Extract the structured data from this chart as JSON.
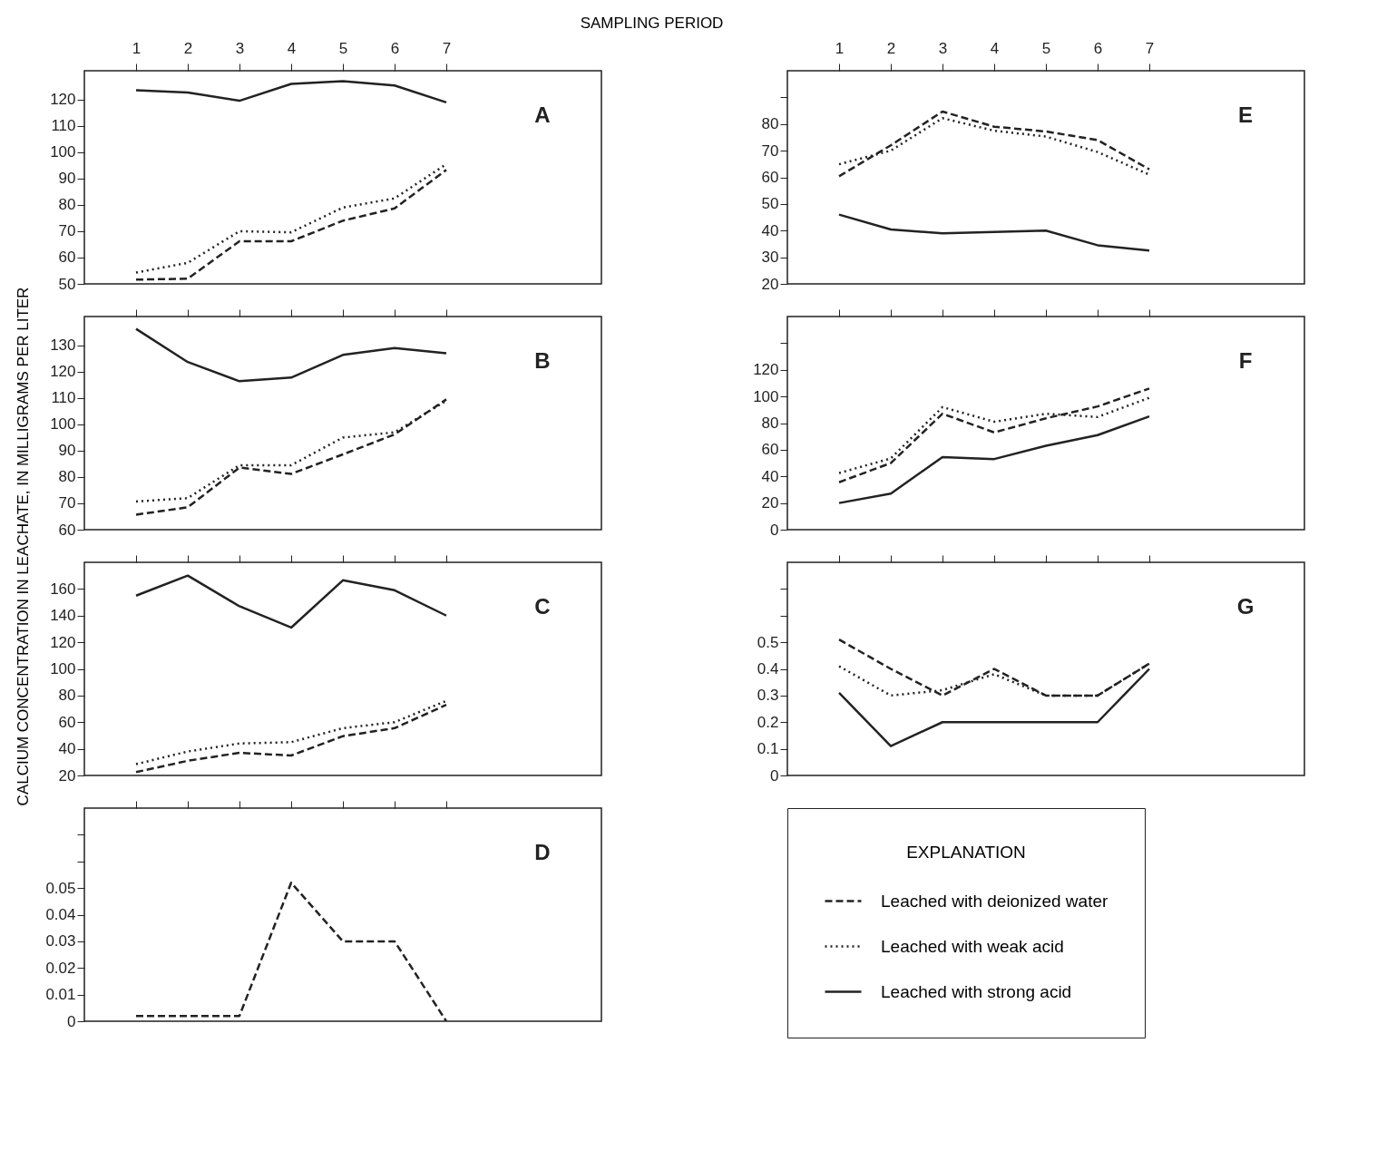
{
  "chart_data": [
    {
      "type": "line",
      "title": "A",
      "xlabel": "SAMPLING PERIOD",
      "x": [
        1,
        2,
        3,
        4,
        5,
        6,
        7
      ],
      "xlim": [
        0,
        10
      ],
      "xticks": [
        1,
        2,
        3,
        4,
        5,
        6,
        7
      ],
      "ylim": [
        50,
        131
      ],
      "yticks": [
        50,
        60,
        70,
        80,
        90,
        100,
        110,
        120
      ],
      "legend": false,
      "series": [
        {
          "color": "#222222",
          "line_style": "dashed",
          "values": [
            51.6,
            52,
            66.2,
            66.2,
            74,
            78.7,
            93.3
          ]
        },
        {
          "color": "#222222",
          "line_style": "dotted",
          "values": [
            54.3,
            58,
            70,
            69.6,
            79,
            82.5,
            95.5
          ]
        },
        {
          "color": "#222222",
          "line_style": "solid",
          "values": [
            123.6,
            122.7,
            119.6,
            126,
            127,
            125.4,
            119
          ]
        }
      ]
    },
    {
      "type": "line",
      "title": "B",
      "ylabel": "CALCIUM CONCENTRATION IN LEACHATE, IN MILLIGRAMS PER LITER",
      "x": [
        1,
        2,
        3,
        4,
        5,
        6,
        7
      ],
      "xlim": [
        0,
        10
      ],
      "xticks": [
        1,
        2,
        3,
        4,
        5,
        6,
        7
      ],
      "tick_labels": "y",
      "ylim": [
        60,
        141
      ],
      "yticks": [
        60,
        70,
        80,
        90,
        100,
        110,
        120,
        130
      ],
      "legend": false,
      "series": [
        {
          "color": "#222222",
          "line_style": "dashed",
          "values": [
            65.7,
            68.5,
            83.6,
            81.2,
            88.6,
            96.2,
            109.5
          ]
        },
        {
          "color": "#222222",
          "line_style": "dotted",
          "values": [
            70.7,
            72,
            84.5,
            84.5,
            95,
            97,
            109
          ]
        },
        {
          "color": "#222222",
          "line_style": "solid",
          "values": [
            136.3,
            123.7,
            116.4,
            117.8,
            126.4,
            129,
            127
          ]
        }
      ]
    },
    {
      "type": "line",
      "title": "C",
      "x": [
        1,
        2,
        3,
        4,
        5,
        6,
        7
      ],
      "xlim": [
        0,
        10
      ],
      "xticks": [
        1,
        2,
        3,
        4,
        5,
        6,
        7
      ],
      "tick_labels": "y",
      "ylim": [
        20,
        180
      ],
      "yticks": [
        20,
        40,
        60,
        80,
        100,
        120,
        140,
        160
      ],
      "legend": false,
      "series": [
        {
          "color": "#222222",
          "line_style": "dashed",
          "values": [
            22.5,
            31,
            37,
            35,
            49.5,
            55.5,
            73
          ]
        },
        {
          "color": "#222222",
          "line_style": "dotted",
          "values": [
            28.5,
            38,
            44,
            45,
            55.5,
            60,
            76
          ]
        },
        {
          "color": "#222222",
          "line_style": "solid",
          "values": [
            155,
            170,
            147,
            131,
            166.5,
            159,
            140
          ]
        }
      ]
    },
    {
      "type": "line",
      "title": "D",
      "x": [
        1,
        2,
        3,
        4,
        5,
        6,
        7
      ],
      "xlim": [
        0,
        10
      ],
      "xticks": [
        1,
        2,
        3,
        4,
        5,
        6,
        7
      ],
      "tick_labels": "y",
      "ylim": [
        0,
        0.08
      ],
      "yticks": [
        0,
        0.01,
        0.02,
        0.03,
        0.04,
        0.05,
        {
          "value": 0.06,
          "label": null
        },
        {
          "value": 0.07,
          "label": null
        }
      ],
      "legend": false,
      "series": [
        {
          "color": "#222222",
          "line_style": "dashed",
          "values": [
            0.002,
            0.002,
            0.002,
            0.052,
            0.03,
            0.03,
            0
          ]
        }
      ]
    },
    {
      "type": "line",
      "title": "E",
      "x": [
        1,
        2,
        3,
        4,
        5,
        6,
        7
      ],
      "xlim": [
        0,
        10
      ],
      "xticks": [
        1,
        2,
        3,
        4,
        5,
        6,
        7
      ],
      "ylim": [
        20,
        100
      ],
      "yticks": [
        20,
        30,
        40,
        50,
        60,
        70,
        80,
        {
          "value": 90,
          "label": null
        }
      ],
      "legend": false,
      "series": [
        {
          "color": "#222222",
          "line_style": "dashed",
          "values": [
            60.4,
            72,
            84.7,
            79,
            77.2,
            74,
            63
          ]
        },
        {
          "color": "#222222",
          "line_style": "dotted",
          "values": [
            64.9,
            70,
            82.2,
            77.5,
            75.3,
            69.5,
            61
          ]
        },
        {
          "color": "#222222",
          "line_style": "solid",
          "values": [
            46,
            40.4,
            39,
            39.5,
            40,
            34.5,
            32.5
          ]
        }
      ]
    },
    {
      "type": "line",
      "title": "F",
      "x": [
        1,
        2,
        3,
        4,
        5,
        6,
        7
      ],
      "xlim": [
        0,
        10
      ],
      "xticks": [
        1,
        2,
        3,
        4,
        5,
        6,
        7
      ],
      "tick_labels": "y",
      "ylim": [
        0,
        160
      ],
      "yticks": [
        0,
        20,
        40,
        60,
        80,
        100,
        120,
        {
          "value": 140,
          "label": null
        }
      ],
      "legend": false,
      "series": [
        {
          "color": "#222222",
          "line_style": "dashed",
          "values": [
            35.6,
            50,
            87,
            73,
            83.6,
            92.5,
            106
          ]
        },
        {
          "color": "#222222",
          "line_style": "dotted",
          "values": [
            42.5,
            53.5,
            92,
            81,
            87,
            84.6,
            99
          ]
        },
        {
          "color": "#222222",
          "line_style": "solid",
          "values": [
            20,
            27,
            54.5,
            53,
            63,
            71,
            85
          ]
        }
      ]
    },
    {
      "type": "line",
      "title": "G",
      "legend_title": "EXPLANATION",
      "x": [
        1,
        2,
        3,
        4,
        5,
        6,
        7
      ],
      "xlim": [
        0,
        10
      ],
      "xticks": [
        1,
        2,
        3,
        4,
        5,
        6,
        7
      ],
      "tick_labels": "y",
      "ylim": [
        0,
        0.8
      ],
      "yticks": [
        0,
        0.1,
        0.2,
        0.3,
        0.4,
        0.5,
        {
          "value": 0.6,
          "label": null
        },
        {
          "value": 0.7,
          "label": null
        }
      ],
      "legend": "bottom",
      "series": [
        {
          "name": "Leached with deionized water",
          "color": "#222222",
          "line_style": "dashed",
          "values": [
            0.51,
            0.4,
            0.3,
            0.4,
            0.3,
            0.3,
            0.42
          ]
        },
        {
          "name": "Leached with weak acid",
          "color": "#222222",
          "line_style": "dotted",
          "values": [
            0.41,
            0.3,
            0.32,
            0.38,
            0.3,
            0.3,
            0.42
          ]
        },
        {
          "name": "Leached with strong acid",
          "color": "#222222",
          "line_style": "solid",
          "values": [
            0.31,
            0.11,
            0.2,
            0.2,
            0.2,
            0.2,
            0.4
          ]
        }
      ]
    }
  ]
}
